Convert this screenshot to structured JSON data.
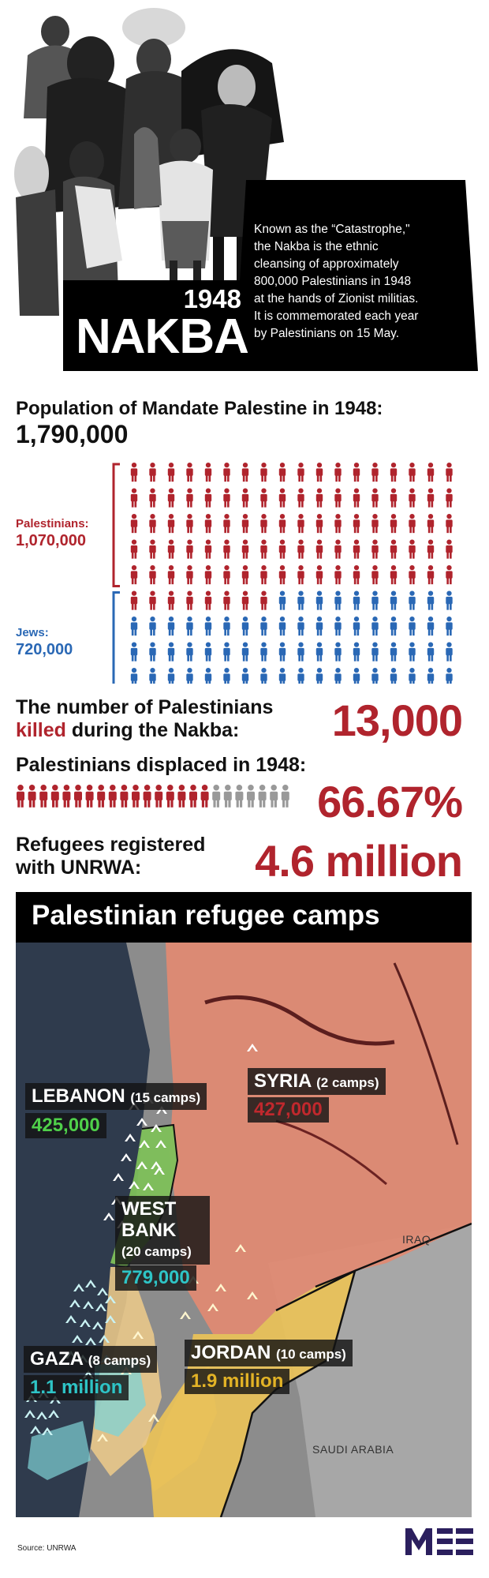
{
  "hero": {
    "year": "1948",
    "title": "NAKBA",
    "description_lines": [
      "Known as the “Catastrophe,\"",
      "the Nakba is the ethnic",
      "cleansing of approximately",
      "800,000 Palestinians in 1948",
      "at the hands of Zionist militias.",
      "It is commemorated each year",
      "by Palestinians on 15 May."
    ]
  },
  "population": {
    "heading": "Population of Mandate Palestine in 1948:",
    "total": "1,790,000",
    "palestinians": {
      "label": "Palestinians:",
      "value": "1,070,000",
      "color": "#b0242d",
      "icons": 98
    },
    "jews": {
      "label": "Jews:",
      "value": "720,000",
      "color": "#2a68b5",
      "icons": 66
    }
  },
  "killed": {
    "line1": "The number of Palestinians",
    "highlight": "killed",
    "rest": " during the Nakba:",
    "value": "13,000"
  },
  "displaced": {
    "label": "Palestinians displaced in 1948:",
    "value": "66.67%",
    "fraction": 0.6667
  },
  "refugees": {
    "line1": "Refugees registered",
    "line2": "with UNRWA:",
    "value": "4.6 million"
  },
  "map": {
    "title": "Palestinian refugee camps",
    "lebanon": {
      "name": "LEBANON",
      "camps": "(15 camps)",
      "value": "425,000"
    },
    "syria": {
      "name": "SYRIA",
      "camps": "(2 camps)",
      "value": "427,000"
    },
    "westbank": {
      "name1": "WEST",
      "name2": "BANK",
      "camps": "(20 camps)",
      "value": "779,000"
    },
    "gaza": {
      "name": "GAZA",
      "camps": "(8 camps)",
      "value": "1.1 million"
    },
    "jordan": {
      "name": "JORDAN",
      "camps": "(10 camps)",
      "value": "1.9 million"
    },
    "iraq": "IRAQ",
    "saudi": "SAUDI ARABIA"
  },
  "footer": {
    "source": "Source: UNRWA"
  },
  "colors": {
    "red": "#b0242d",
    "blue": "#2a68b5",
    "grey": "#999999"
  }
}
